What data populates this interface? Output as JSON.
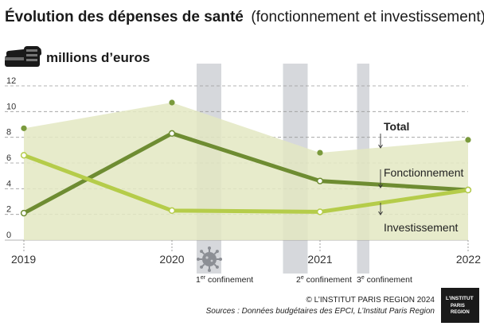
{
  "header": {
    "title_bold": "Évolution des dépenses de santé",
    "title_regular": "(fonctionnement et investissement)",
    "unit": "millions d’euros",
    "unit_icon": "banknote-stack-icon"
  },
  "periods": [
    {
      "ordinal": "1",
      "suffix": "er",
      "text": " confinement",
      "icon": "virus-icon"
    },
    {
      "ordinal": "2",
      "suffix": "e",
      "text": " confinement"
    },
    {
      "ordinal": "3",
      "suffix": "e",
      "text": " confinement"
    }
  ],
  "footer": {
    "copyright": "© L’INSTITUT PARIS REGION 2024",
    "source": "Sources : Données budgétaires des EPCI, L’Institut Paris Region",
    "logo_line1": "L’INSTITUT",
    "logo_line2": "PARIS",
    "logo_line3": "REGION"
  },
  "colors": {
    "total_area": "#e3e8c2",
    "total_point": "#7a9a3c",
    "fonctionnement": "#6e8c32",
    "investissement": "#b5cc4a",
    "confinement_band": "#d6d8dc",
    "grid": "#9a9a9a"
  },
  "chart_data": {
    "type": "line",
    "x": [
      "2019",
      "2020",
      "2021",
      "2022"
    ],
    "ylabel": "millions d’euros",
    "ylim": [
      0,
      12
    ],
    "yticks": [
      0,
      2,
      4,
      6,
      8,
      10,
      12
    ],
    "grid": "horizontal dashed",
    "series": [
      {
        "name": "Total",
        "style": "area",
        "values": [
          8.7,
          10.7,
          6.8,
          7.8
        ]
      },
      {
        "name": "Fonctionnement",
        "style": "line",
        "values": [
          2.1,
          8.3,
          4.6,
          3.9
        ]
      },
      {
        "name": "Investissement",
        "style": "line",
        "values": [
          6.6,
          2.3,
          2.2,
          3.9
        ]
      }
    ],
    "confinement_periods": [
      {
        "label": "1er confinement",
        "from": "2020-03",
        "to": "2020-05"
      },
      {
        "label": "2e confinement",
        "from": "2020-10",
        "to": "2020-12"
      },
      {
        "label": "3e confinement",
        "from": "2021-04",
        "to": "2021-05"
      }
    ]
  }
}
